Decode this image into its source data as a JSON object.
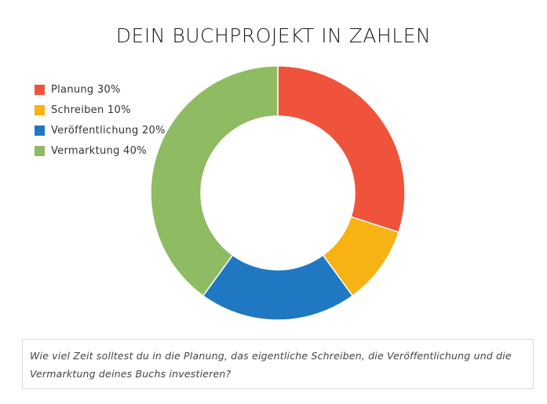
{
  "chart_data": {
    "type": "pie",
    "title": "DEIN BUCHPROJEKT IN ZAHLEN",
    "donut": true,
    "legend_position": "top-left",
    "series": [
      {
        "name": "Planung 30%",
        "value": 30,
        "color": "#f0533b"
      },
      {
        "name": "Schreiben 10%",
        "value": 10,
        "color": "#f7b213"
      },
      {
        "name": "Veröffentlichung 20%",
        "value": 20,
        "color": "#1f78c1"
      },
      {
        "name": "Vermarktung 40%",
        "value": 40,
        "color": "#8fbb63"
      }
    ]
  },
  "caption": "Wie viel Zeit solltest du in die Planung, das eigentliche Schreiben, die Veröffentlichung und die Vermarktung deines Buchs investieren?"
}
